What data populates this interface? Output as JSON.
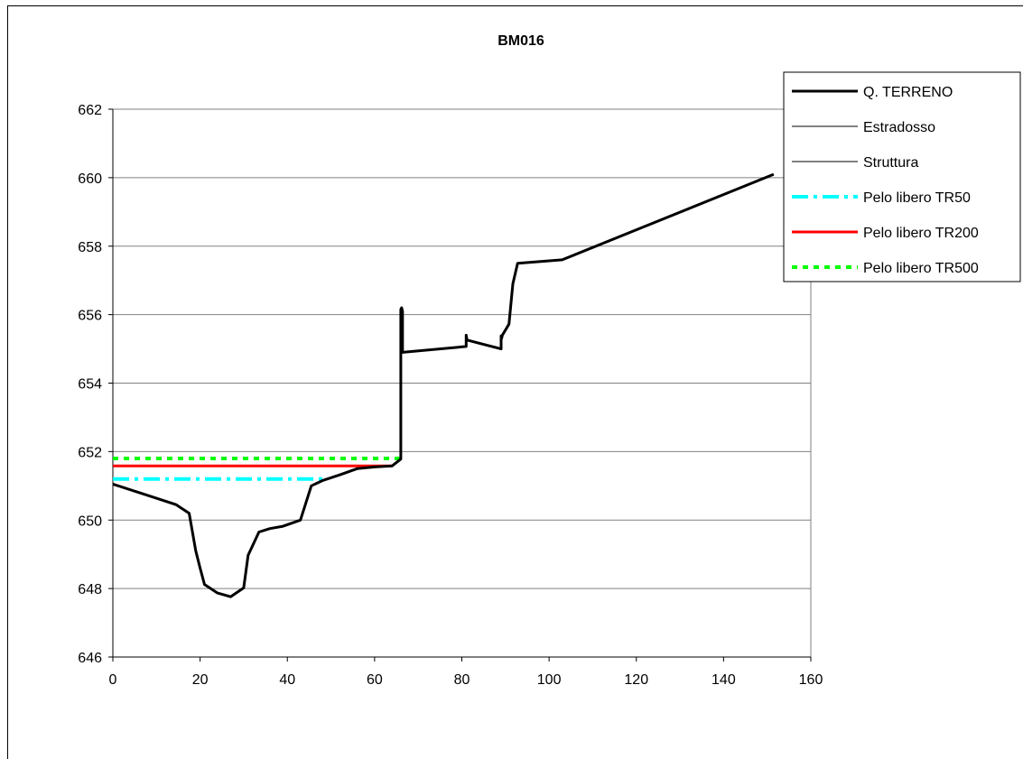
{
  "chart_data": {
    "type": "line",
    "title": "BM016",
    "xlabel": "",
    "ylabel": "",
    "xlim": [
      0,
      160
    ],
    "ylim": [
      646,
      662
    ],
    "x_ticks": [
      "0",
      "20",
      "40",
      "60",
      "80",
      "100",
      "120",
      "140",
      "160"
    ],
    "y_ticks": [
      "646",
      "648",
      "650",
      "652",
      "654",
      "656",
      "658",
      "660",
      "662"
    ],
    "grid": "horizontal major gridlines",
    "legend_position": "top-right",
    "series": [
      {
        "name": "Q. TERRENO",
        "color": "#000000",
        "style": "solid-thick",
        "x": [
          0,
          8,
          14.5,
          17.5,
          19,
          20,
          21,
          24,
          27,
          30,
          31,
          33.5,
          36,
          39,
          43,
          45.5,
          48,
          52,
          56,
          60,
          64,
          66,
          66,
          66.2,
          66.4,
          66.4,
          66.4,
          81,
          81,
          81,
          81.2,
          81.4,
          89,
          89,
          89,
          89.1,
          89.3,
          90.8,
          91.7,
          92.8,
          103,
          151.5
        ],
        "y": [
          651.05,
          650.72,
          650.45,
          650.2,
          649.1,
          648.6,
          648.12,
          647.87,
          647.76,
          648.02,
          648.97,
          649.65,
          649.75,
          649.82,
          650.0,
          651.0,
          651.15,
          651.32,
          651.5,
          651.55,
          651.58,
          651.78,
          656.15,
          656.2,
          656.1,
          654.9,
          654.9,
          655.07,
          655.3,
          655.4,
          655.25,
          655.25,
          655.0,
          655.3,
          655.38,
          655.3,
          655.4,
          655.72,
          656.9,
          657.5,
          657.6,
          660.1
        ]
      },
      {
        "name": "Estradosso",
        "color": "#000000",
        "style": "solid-thin",
        "x": [],
        "y": []
      },
      {
        "name": "Struttura",
        "color": "#000000",
        "style": "solid-thin",
        "x": [],
        "y": []
      },
      {
        "name": "Pelo libero TR50",
        "color": "#00ffff",
        "style": "dash-dot",
        "x": [
          0,
          48.5
        ],
        "y": [
          651.2,
          651.2
        ]
      },
      {
        "name": "Pelo libero TR200",
        "color": "#ff0000",
        "style": "solid",
        "x": [
          0,
          64
        ],
        "y": [
          651.58,
          651.58
        ]
      },
      {
        "name": "Pelo libero TR500",
        "color": "#00ff00",
        "style": "dotted",
        "x": [
          0,
          66
        ],
        "y": [
          651.8,
          651.8
        ]
      }
    ]
  }
}
